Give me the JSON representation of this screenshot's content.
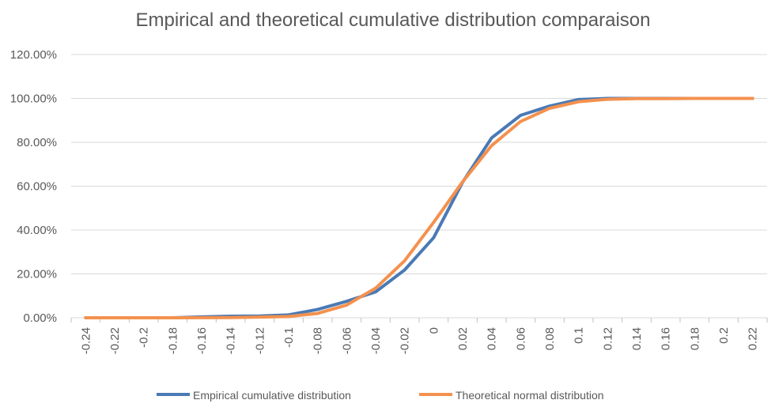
{
  "chart_data": {
    "type": "line",
    "title": "Empirical and theoretical cumulative distribution comparaison",
    "xlabel": "",
    "ylabel": "",
    "categories": [
      "-0.24",
      "-0.22",
      "-0.2",
      "-0.18",
      "-0.16",
      "-0.14",
      "-0.12",
      "-0.1",
      "-0.08",
      "-0.06",
      "-0.04",
      "-0.02",
      "0",
      "0.02",
      "0.04",
      "0.06",
      "0.08",
      "0.1",
      "0.12",
      "0.14",
      "0.16",
      "0.18",
      "0.2",
      "0.22"
    ],
    "y_ticks": [
      "0.00%",
      "20.00%",
      "40.00%",
      "60.00%",
      "80.00%",
      "100.00%",
      "120.00%"
    ],
    "ylim": [
      0,
      120
    ],
    "grid": true,
    "legend_position": "bottom",
    "series": [
      {
        "name": "Empirical cumulative distribution",
        "color": "#4a7ab5",
        "values": [
          0,
          0,
          0,
          0,
          0.4,
          0.7,
          0.8,
          1.3,
          3.8,
          7.5,
          11.8,
          21.8,
          36.5,
          61.8,
          82.0,
          92.3,
          96.5,
          99.5,
          100,
          100,
          100,
          100,
          100,
          100
        ]
      },
      {
        "name": "Theoretical normal distribution",
        "color": "#f4914e",
        "values": [
          0,
          0,
          0,
          0,
          0.05,
          0.1,
          0.3,
          0.6,
          2.0,
          5.8,
          13.5,
          26.0,
          43.5,
          62.0,
          78.5,
          89.5,
          95.5,
          98.5,
          99.6,
          99.9,
          99.9,
          100,
          100,
          100
        ]
      }
    ]
  }
}
